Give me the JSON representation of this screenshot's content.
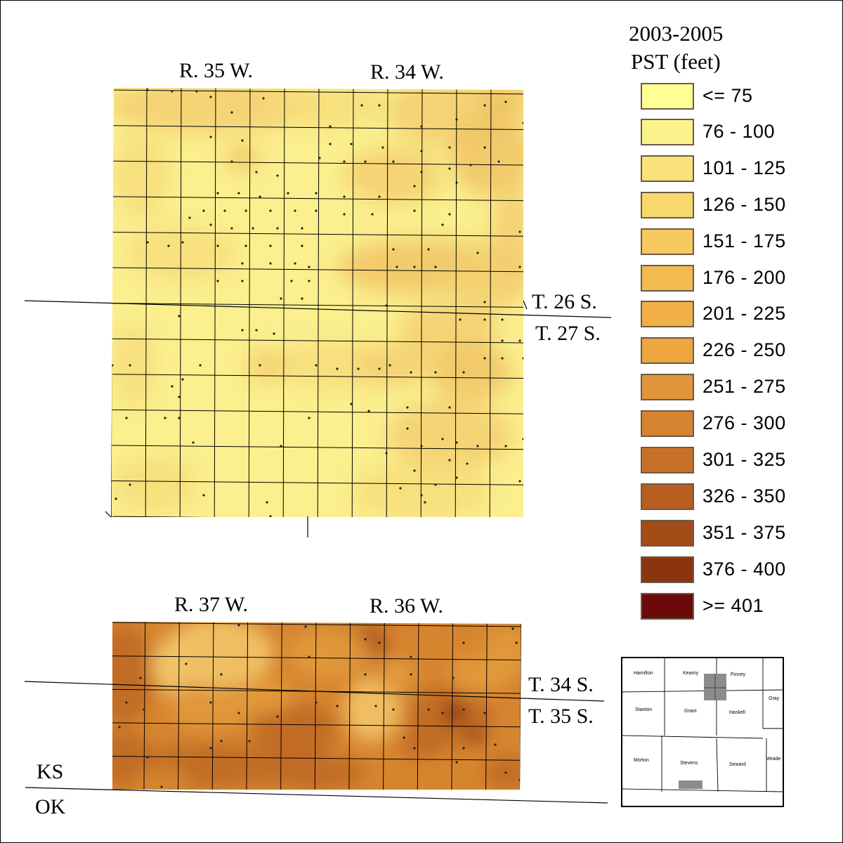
{
  "legend": {
    "title_line1": "2003-2005",
    "title_line2": "PST (feet)",
    "classes": [
      {
        "label": "<= 75",
        "color": "#ffff96"
      },
      {
        "label": "76 - 100",
        "color": "#fcf28c"
      },
      {
        "label": "101 - 125",
        "color": "#f9e27a"
      },
      {
        "label": "126 - 150",
        "color": "#f7d86d"
      },
      {
        "label": "151 - 175",
        "color": "#f5c95d"
      },
      {
        "label": "176 - 200",
        "color": "#f2bb50"
      },
      {
        "label": "201 - 225",
        "color": "#f1b046"
      },
      {
        "label": "226 - 250",
        "color": "#eda53f"
      },
      {
        "label": "251 - 275",
        "color": "#e2953a"
      },
      {
        "label": "276 - 300",
        "color": "#d6842f"
      },
      {
        "label": "301 - 325",
        "color": "#c97028"
      },
      {
        "label": "326 - 350",
        "color": "#b75e20"
      },
      {
        "label": "351 - 375",
        "color": "#a34c18"
      },
      {
        "label": "376 - 400",
        "color": "#8b3410"
      },
      {
        "label": ">= 401",
        "color": "#6b0a0a"
      }
    ]
  },
  "upper_map": {
    "range_label_west": "R. 35 W.",
    "range_label_east": "R. 34 W.",
    "township_label_north": "T. 26 S.",
    "township_label_south": "T. 27 S.",
    "fill_colors": [
      "#fbef8e",
      "#f7dd7a",
      "#f3cf70",
      "#f0c465"
    ]
  },
  "lower_map": {
    "range_label_west": "R. 37 W.",
    "range_label_east": "R. 36 W.",
    "township_label_north": "T. 34 S.",
    "township_label_south": "T. 35 S.",
    "fill_colors": [
      "#e29a3c",
      "#d6852f",
      "#c06a26",
      "#f2c468",
      "#7a2a10"
    ]
  },
  "state_labels": {
    "north": "KS",
    "south": "OK"
  },
  "inset": {
    "counties": [
      "Hamilton",
      "Kearny",
      "Finney",
      "Gray",
      "Stanton",
      "Grant",
      "Haskell",
      "Morton",
      "Stevens",
      "Seward",
      "Meade"
    ],
    "highlight_color": "#8c8c8c"
  }
}
